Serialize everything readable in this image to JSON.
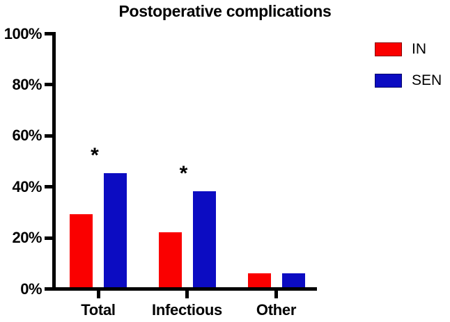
{
  "chart_data": {
    "type": "bar",
    "title": "Postoperative complications",
    "categories": [
      "Total",
      "Infectious",
      "Other"
    ],
    "series": [
      {
        "name": "IN",
        "color": "#FA0000",
        "values": [
          28.6,
          21.4,
          5.4
        ]
      },
      {
        "name": "SEN",
        "color": "#0C0CC2",
        "values": [
          44.6,
          37.5,
          5.4
        ]
      }
    ],
    "y_axis": {
      "min": 0,
      "max": 100,
      "step": 20,
      "unit": "%",
      "tick_labels": [
        "0%",
        "20%",
        "40%",
        "60%",
        "80%",
        "100%"
      ]
    },
    "significance_markers": [
      {
        "category": "Total",
        "symbol": "*"
      },
      {
        "category": "Infectious",
        "symbol": "*"
      }
    ],
    "legend": {
      "position": "right",
      "entries": [
        {
          "label": "IN",
          "color": "#FA0000"
        },
        {
          "label": "SEN",
          "color": "#0C0CC2"
        }
      ]
    },
    "grid": false,
    "axis_color": "#000000",
    "background": "#FFFFFF"
  }
}
